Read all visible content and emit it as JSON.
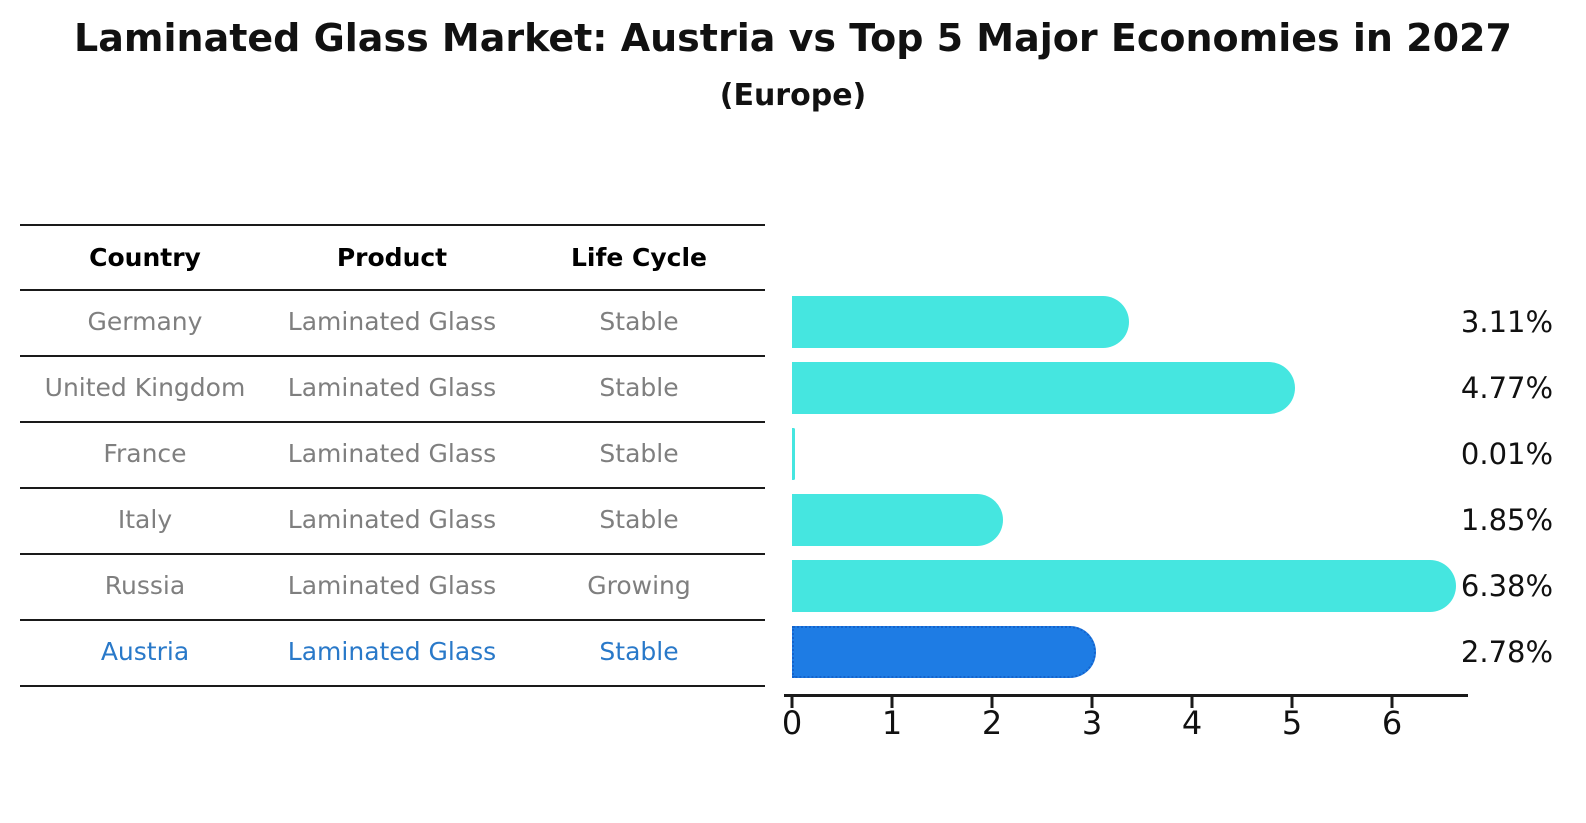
{
  "title": "Laminated Glass Market: Austria vs Top 5 Major Economies in 2027",
  "subtitle": "(Europe)",
  "table": {
    "headers": [
      "Country",
      "Product",
      "Life Cycle"
    ],
    "rows": [
      {
        "country": "Germany",
        "product": "Laminated Glass",
        "life_cycle": "Stable",
        "highlight": false
      },
      {
        "country": "United Kingdom",
        "product": "Laminated Glass",
        "life_cycle": "Stable",
        "highlight": false
      },
      {
        "country": "France",
        "product": "Laminated Glass",
        "life_cycle": "Stable",
        "highlight": false
      },
      {
        "country": "Italy",
        "product": "Laminated Glass",
        "life_cycle": "Stable",
        "highlight": false
      },
      {
        "country": "Russia",
        "product": "Laminated Glass",
        "life_cycle": "Growing",
        "highlight": false
      },
      {
        "country": "Austria",
        "product": "Laminated Glass",
        "life_cycle": "Stable",
        "highlight": true
      }
    ]
  },
  "chart_data": {
    "type": "bar",
    "orientation": "horizontal",
    "title": "Laminated Glass Market: Austria vs Top 5 Major Economies in 2027 (Europe)",
    "categories": [
      "Germany",
      "United Kingdom",
      "France",
      "Italy",
      "Russia",
      "Austria"
    ],
    "values": [
      3.11,
      4.77,
      0.01,
      1.85,
      6.38,
      2.78
    ],
    "value_labels": [
      "3.11%",
      "4.77%",
      "0.01%",
      "1.85%",
      "6.38%",
      "2.78%"
    ],
    "x_ticks": [
      "0",
      "1",
      "2",
      "3",
      "4",
      "5",
      "6"
    ],
    "xlim": [
      0,
      6.8
    ],
    "highlight_index": 5,
    "legend": "none",
    "grid": false
  },
  "colors": {
    "bar": "#45e6e0",
    "highlight_bar": "#1e7ce4",
    "highlight_border": "#1463cc",
    "highlight_text": "#2979c9",
    "row_text": "#7f7f7f",
    "axis": "#1a1a1a"
  }
}
